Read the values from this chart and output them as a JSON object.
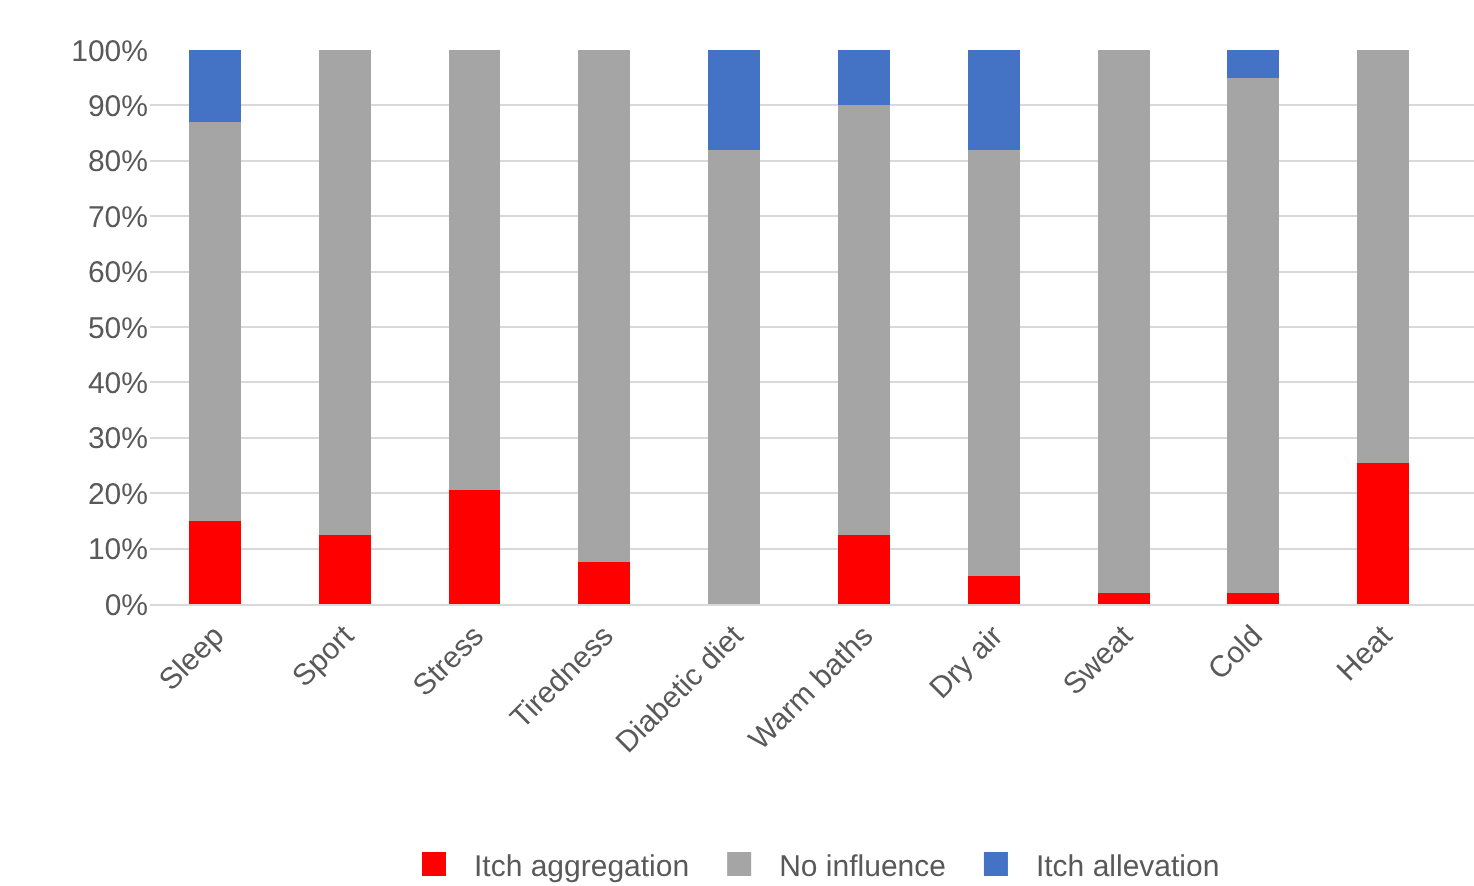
{
  "chart_data": {
    "type": "bar",
    "stacked": true,
    "categories": [
      "Sleep",
      "Sport",
      "Stress",
      "Tiredness",
      "Diabetic diet",
      "Warm baths",
      "Dry air",
      "Sweat",
      "Cold",
      "Heat"
    ],
    "series": [
      {
        "name": "Itch aggregation",
        "color": "#ff0000",
        "values": [
          15,
          12.5,
          20.5,
          7.5,
          0,
          12.5,
          5,
          2,
          2,
          25.5
        ]
      },
      {
        "name": "No influence",
        "color": "#a5a5a5",
        "values": [
          72,
          87.5,
          79.5,
          92.5,
          82,
          77.5,
          77,
          98,
          93,
          74.5
        ]
      },
      {
        "name": "Itch allevation",
        "color": "#4472c4",
        "values": [
          13,
          0,
          0,
          0,
          18,
          10,
          18,
          0,
          5,
          0
        ]
      }
    ],
    "ylim": [
      0,
      100
    ],
    "yticks": [
      {
        "value": 0,
        "label": "0%"
      },
      {
        "value": 10,
        "label": "10%"
      },
      {
        "value": 20,
        "label": "20%"
      },
      {
        "value": 30,
        "label": "30%"
      },
      {
        "value": 40,
        "label": "40%"
      },
      {
        "value": 50,
        "label": "50%"
      },
      {
        "value": 60,
        "label": "60%"
      },
      {
        "value": 70,
        "label": "70%"
      },
      {
        "value": 80,
        "label": "80%"
      },
      {
        "value": 90,
        "label": "90%"
      },
      {
        "value": 100,
        "label": "100%"
      }
    ],
    "grid": "y",
    "legend": "bottom"
  }
}
